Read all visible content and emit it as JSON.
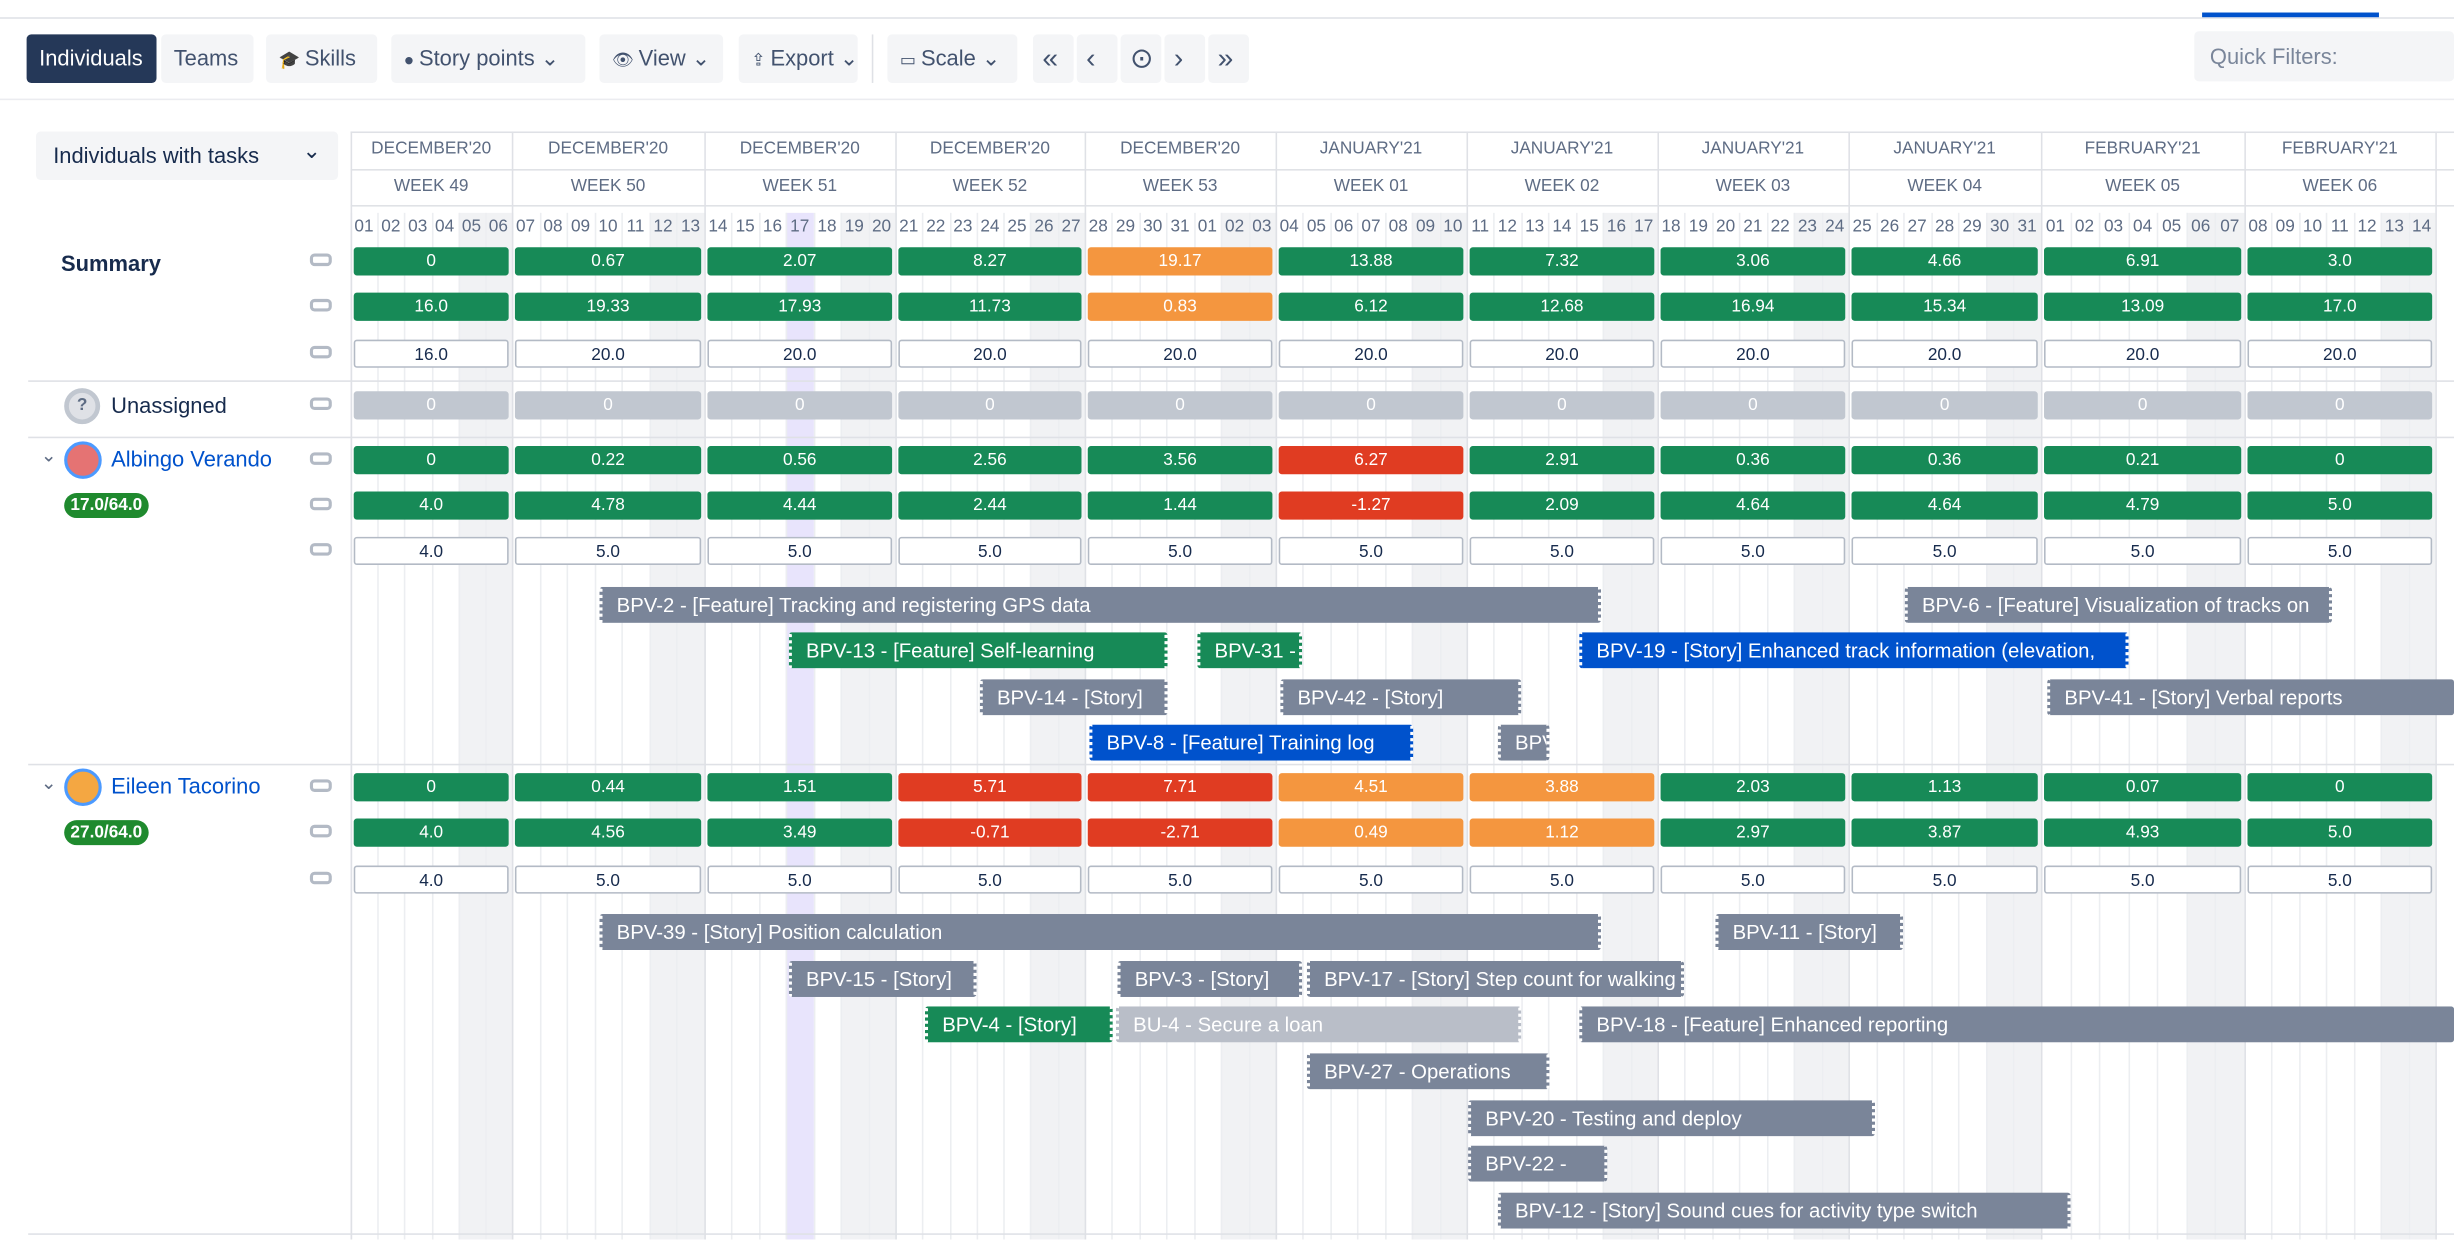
{
  "toolbar": {
    "buttons": [
      "Individuals",
      "Teams",
      "Skills",
      "Story points",
      "View",
      "Export",
      "Scale"
    ],
    "quick_filters": "Quick Filters:"
  },
  "sidebar": {
    "dropdown": "Individuals with tasks"
  },
  "timeline": {
    "months": [
      "DECEMBER'20",
      "DECEMBER'20",
      "DECEMBER'20",
      "DECEMBER'20",
      "DECEMBER'20",
      "JANUARY'21",
      "JANUARY'21",
      "JANUARY'21",
      "JANUARY'21",
      "FEBRUARY'21",
      "FEBRUARY'21"
    ],
    "weeks": [
      "WEEK 49",
      "WEEK 50",
      "WEEK 51",
      "WEEK 52",
      "WEEK 53",
      "WEEK 01",
      "WEEK 02",
      "WEEK 03",
      "WEEK 04",
      "WEEK 05",
      "WEEK 06"
    ],
    "days": [
      "01",
      "02",
      "03",
      "04",
      "05",
      "06",
      "07",
      "08",
      "09",
      "10",
      "11",
      "12",
      "13",
      "14",
      "15",
      "16",
      "17",
      "18",
      "19",
      "20",
      "21",
      "22",
      "23",
      "24",
      "25",
      "26",
      "27",
      "28",
      "29",
      "30",
      "31",
      "01",
      "02",
      "03",
      "04",
      "05",
      "06",
      "07",
      "08",
      "09",
      "10",
      "11",
      "12",
      "13",
      "14",
      "15",
      "16",
      "17",
      "18",
      "19",
      "20",
      "21",
      "22",
      "23",
      "24",
      "25",
      "26",
      "27",
      "28",
      "29",
      "30",
      "31",
      "01",
      "02",
      "03",
      "04",
      "05",
      "06",
      "07",
      "08",
      "09",
      "10",
      "11",
      "12",
      "13",
      "14"
    ]
  },
  "summary": {
    "label": "Summary",
    "rows": [
      [
        "0",
        "0.67",
        "2.07",
        "8.27",
        "19.17",
        "13.88",
        "7.32",
        "3.06",
        "4.66",
        "6.91",
        "3.0"
      ],
      [
        "16.0",
        "19.33",
        "17.93",
        "11.73",
        "0.83",
        "6.12",
        "12.68",
        "16.94",
        "15.34",
        "13.09",
        "17.0"
      ],
      [
        "16.0",
        "20.0",
        "20.0",
        "20.0",
        "20.0",
        "20.0",
        "20.0",
        "20.0",
        "20.0",
        "20.0",
        "20.0"
      ]
    ]
  },
  "unassigned": {
    "label": "Unassigned",
    "rows": [
      [
        "0",
        "0",
        "0",
        "0",
        "0",
        "0",
        "0",
        "0",
        "0",
        "0",
        "0"
      ]
    ]
  },
  "people": [
    {
      "name": "Albingo Verando",
      "badge": "17.0/64.0",
      "rows": [
        [
          "0",
          "0.22",
          "0.56",
          "2.56",
          "3.56",
          "6.27",
          "2.91",
          "0.36",
          "0.36",
          "0.21",
          "0"
        ],
        [
          "4.0",
          "4.78",
          "4.44",
          "2.44",
          "1.44",
          "-1.27",
          "2.09",
          "4.64",
          "4.64",
          "4.79",
          "5.0"
        ],
        [
          "4.0",
          "5.0",
          "5.0",
          "5.0",
          "5.0",
          "5.0",
          "5.0",
          "5.0",
          "5.0",
          "5.0",
          "5.0"
        ]
      ],
      "tasks": [
        "BPV-2 - [Feature] Tracking and registering GPS data",
        "BPV-6 - [Feature] Visualization of tracks on",
        "BPV-13 - [Feature] Self-learning",
        "BPV-31 -",
        "BPV-19 - [Story] Enhanced track information (elevation,",
        "BPV-14 - [Story]",
        "BPV-42 - [Story]",
        "BPV-41 - [Story] Verbal reports",
        "BPV-8 - [Feature] Training log",
        "BPV"
      ]
    },
    {
      "name": "Eileen Tacorino",
      "badge": "27.0/64.0",
      "rows": [
        [
          "0",
          "0.44",
          "1.51",
          "5.71",
          "7.71",
          "4.51",
          "3.88",
          "2.03",
          "1.13",
          "0.07",
          "0"
        ],
        [
          "4.0",
          "4.56",
          "3.49",
          "-0.71",
          "-2.71",
          "0.49",
          "1.12",
          "2.97",
          "3.87",
          "4.93",
          "5.0"
        ],
        [
          "4.0",
          "5.0",
          "5.0",
          "5.0",
          "5.0",
          "5.0",
          "5.0",
          "5.0",
          "5.0",
          "5.0",
          "5.0"
        ]
      ],
      "tasks": [
        "BPV-39 - [Story] Position calculation",
        "BPV-11 - [Story]",
        "BPV-15 - [Story]",
        "BPV-3 - [Story]",
        "BPV-17 - [Story] Step count for walking",
        "BPV-4 - [Story]",
        "BU-4 - Secure a loan",
        "BPV-18 - [Feature] Enhanced reporting",
        "BPV-27 - Operations",
        "BPV-20 - Testing and deploy",
        "BPV-22 -",
        "BPV-12 - [Story] Sound cues for activity type switch"
      ]
    }
  ]
}
